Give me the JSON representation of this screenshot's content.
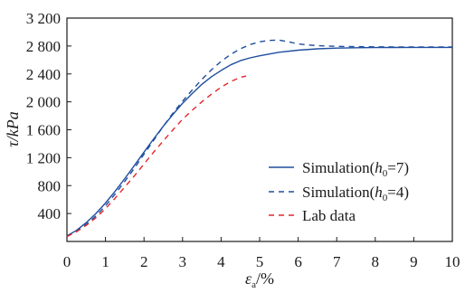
{
  "chart_data": {
    "type": "line",
    "title": "",
    "xlabel_main": "ε",
    "xlabel_sub": "a",
    "xlabel_unit": "/%",
    "ylabel": "τ/kPa",
    "xlim": [
      0,
      10
    ],
    "ylim": [
      0,
      3200
    ],
    "xticks": [
      0,
      1,
      2,
      3,
      4,
      5,
      6,
      7,
      8,
      9,
      10
    ],
    "xtick_labels": [
      "0",
      "1",
      "2",
      "3",
      "4",
      "5",
      "6",
      "7",
      "8",
      "9",
      "10"
    ],
    "yticks": [
      400,
      800,
      1200,
      1600,
      2000,
      2400,
      2800,
      3200
    ],
    "ytick_labels": [
      "400",
      "800",
      "1 200",
      "1 600",
      "2 000",
      "2 400",
      "2 800",
      "3 200"
    ],
    "grid": false,
    "legend_position": "right-middle",
    "series": [
      {
        "name": "Simulation(h0=7)",
        "legend_main": "Simulation(",
        "legend_var": "h",
        "legend_sub": "0",
        "legend_tail": "=7)",
        "style": "solid",
        "color": "#1f4e9e",
        "x": [
          0,
          0.25,
          0.5,
          0.75,
          1.0,
          1.25,
          1.5,
          1.75,
          2.0,
          2.25,
          2.5,
          2.75,
          3.0,
          3.25,
          3.5,
          3.75,
          4.0,
          4.25,
          4.5,
          4.75,
          5.0,
          5.5,
          6.0,
          6.5,
          7.0,
          7.5,
          8.0,
          8.5,
          9.0,
          9.5,
          10.0
        ],
        "y": [
          80,
          160,
          270,
          400,
          550,
          720,
          900,
          1090,
          1280,
          1470,
          1650,
          1820,
          1980,
          2120,
          2250,
          2360,
          2450,
          2530,
          2590,
          2630,
          2660,
          2710,
          2740,
          2760,
          2770,
          2775,
          2778,
          2779,
          2780,
          2780,
          2780
        ]
      },
      {
        "name": "Simulation(h0=4)",
        "legend_main": "Simulation(",
        "legend_var": "h",
        "legend_sub": "0",
        "legend_tail": "=4)",
        "style": "dashed",
        "color": "#1f4e9e",
        "x": [
          0,
          0.25,
          0.5,
          0.75,
          1.0,
          1.25,
          1.5,
          1.75,
          2.0,
          2.25,
          2.5,
          2.75,
          3.0,
          3.25,
          3.5,
          3.75,
          4.0,
          4.25,
          4.5,
          4.75,
          5.0,
          5.25,
          5.5,
          5.75,
          6.0,
          6.25,
          6.5,
          7.0,
          7.5,
          8.0,
          9.0,
          10.0
        ],
        "y": [
          80,
          150,
          245,
          365,
          510,
          680,
          860,
          1050,
          1250,
          1450,
          1650,
          1840,
          2010,
          2170,
          2320,
          2460,
          2580,
          2680,
          2760,
          2820,
          2860,
          2880,
          2885,
          2860,
          2830,
          2815,
          2805,
          2795,
          2790,
          2788,
          2786,
          2785
        ]
      },
      {
        "name": "Lab data",
        "legend_main": "Lab data",
        "legend_var": "",
        "legend_sub": "",
        "legend_tail": "",
        "style": "dashed",
        "color": "#e3262b",
        "x": [
          0,
          0.25,
          0.5,
          0.75,
          1.0,
          1.25,
          1.5,
          1.75,
          2.0,
          2.25,
          2.5,
          2.75,
          3.0,
          3.25,
          3.5,
          3.75,
          4.0,
          4.25,
          4.5,
          4.65
        ],
        "y": [
          70,
          140,
          230,
          340,
          470,
          620,
          780,
          940,
          1110,
          1280,
          1440,
          1600,
          1750,
          1880,
          2000,
          2110,
          2210,
          2290,
          2350,
          2370
        ]
      }
    ]
  }
}
